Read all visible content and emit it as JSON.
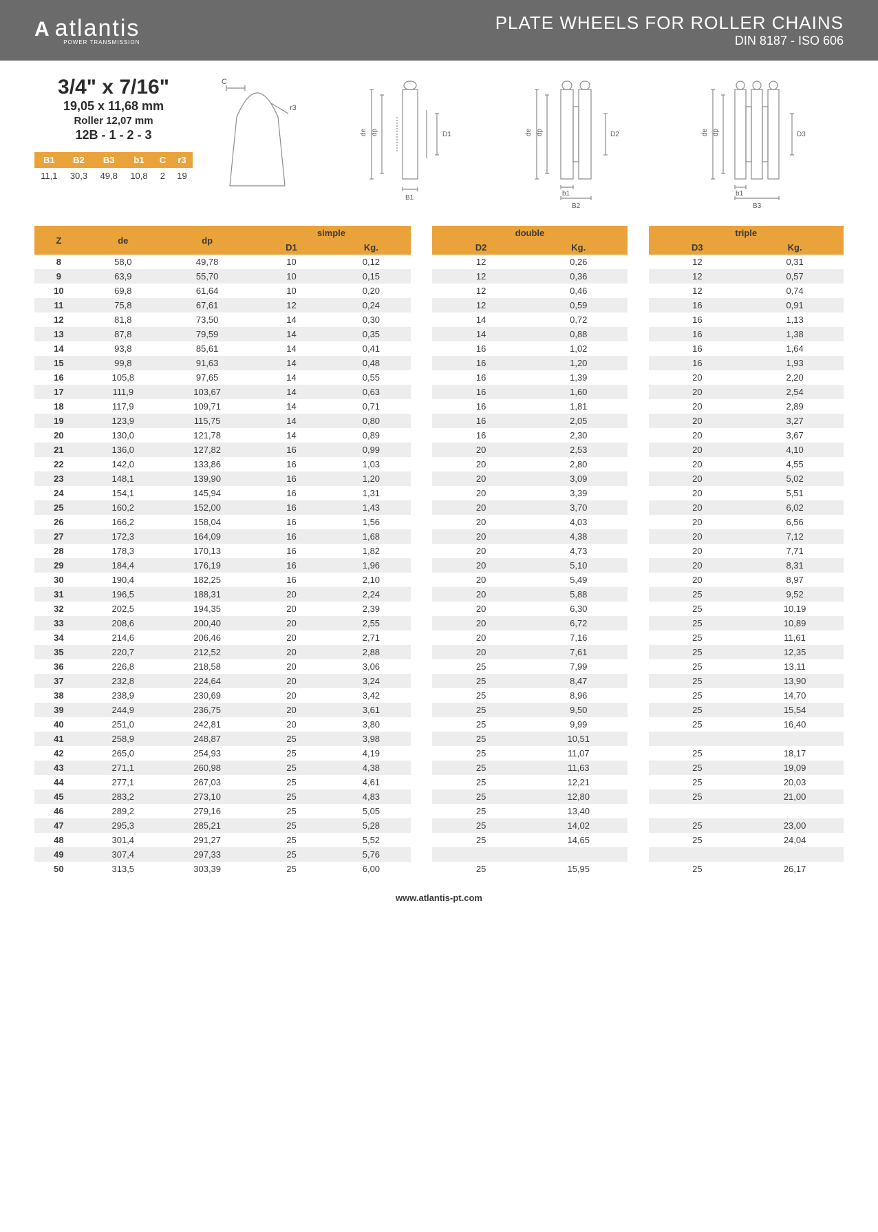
{
  "header": {
    "logo_name": "atlantis",
    "logo_sub": "POWER TRANSMISSION",
    "title": "PLATE WHEELS FOR ROLLER CHAINS",
    "subtitle": "DIN 8187 - ISO 606"
  },
  "spec": {
    "main": "3/4\" x 7/16\"",
    "mm": "19,05 x 11,68 mm",
    "roller": "Roller 12,07 mm",
    "code": "12B - 1 - 2 - 3"
  },
  "params": {
    "headers": [
      "B1",
      "B2",
      "B3",
      "b1",
      "C",
      "r3"
    ],
    "values": [
      "11,1",
      "30,3",
      "49,8",
      "10,8",
      "2",
      "19"
    ]
  },
  "group_labels": {
    "simple": "simple",
    "double": "double",
    "triple": "triple"
  },
  "sub_headers": {
    "z": "Z",
    "de": "de",
    "dp": "dp",
    "d1": "D1",
    "d2": "D2",
    "d3": "D3",
    "kg": "Kg."
  },
  "footer": "www.atlantis-pt.com",
  "colors": {
    "header_bg": "#6b6b6b",
    "orange": "#e9a33a",
    "row_alt": "#ededed",
    "text": "#3a3a3a"
  },
  "diagrams": {
    "color": "#8a8a8a",
    "labels": [
      "C",
      "r3",
      "de",
      "dp",
      "D1",
      "B1",
      "b1",
      "B2",
      "D2",
      "B3",
      "D3"
    ]
  },
  "rows": [
    {
      "z": "8",
      "de": "58,0",
      "dp": "49,78",
      "d1": "10",
      "kg1": "0,12",
      "d2": "12",
      "kg2": "0,26",
      "d3": "12",
      "kg3": "0,31"
    },
    {
      "z": "9",
      "de": "63,9",
      "dp": "55,70",
      "d1": "10",
      "kg1": "0,15",
      "d2": "12",
      "kg2": "0,36",
      "d3": "12",
      "kg3": "0,57"
    },
    {
      "z": "10",
      "de": "69,8",
      "dp": "61,64",
      "d1": "10",
      "kg1": "0,20",
      "d2": "12",
      "kg2": "0,46",
      "d3": "12",
      "kg3": "0,74"
    },
    {
      "z": "11",
      "de": "75,8",
      "dp": "67,61",
      "d1": "12",
      "kg1": "0,24",
      "d2": "12",
      "kg2": "0,59",
      "d3": "16",
      "kg3": "0,91"
    },
    {
      "z": "12",
      "de": "81,8",
      "dp": "73,50",
      "d1": "14",
      "kg1": "0,30",
      "d2": "14",
      "kg2": "0,72",
      "d3": "16",
      "kg3": "1,13"
    },
    {
      "z": "13",
      "de": "87,8",
      "dp": "79,59",
      "d1": "14",
      "kg1": "0,35",
      "d2": "14",
      "kg2": "0,88",
      "d3": "16",
      "kg3": "1,38"
    },
    {
      "z": "14",
      "de": "93,8",
      "dp": "85,61",
      "d1": "14",
      "kg1": "0,41",
      "d2": "16",
      "kg2": "1,02",
      "d3": "16",
      "kg3": "1,64"
    },
    {
      "z": "15",
      "de": "99,8",
      "dp": "91,63",
      "d1": "14",
      "kg1": "0,48",
      "d2": "16",
      "kg2": "1,20",
      "d3": "16",
      "kg3": "1,93"
    },
    {
      "z": "16",
      "de": "105,8",
      "dp": "97,65",
      "d1": "14",
      "kg1": "0,55",
      "d2": "16",
      "kg2": "1,39",
      "d3": "20",
      "kg3": "2,20"
    },
    {
      "z": "17",
      "de": "111,9",
      "dp": "103,67",
      "d1": "14",
      "kg1": "0,63",
      "d2": "16",
      "kg2": "1,60",
      "d3": "20",
      "kg3": "2,54"
    },
    {
      "z": "18",
      "de": "117,9",
      "dp": "109,71",
      "d1": "14",
      "kg1": "0,71",
      "d2": "16",
      "kg2": "1,81",
      "d3": "20",
      "kg3": "2,89"
    },
    {
      "z": "19",
      "de": "123,9",
      "dp": "115,75",
      "d1": "14",
      "kg1": "0,80",
      "d2": "16",
      "kg2": "2,05",
      "d3": "20",
      "kg3": "3,27"
    },
    {
      "z": "20",
      "de": "130,0",
      "dp": "121,78",
      "d1": "14",
      "kg1": "0,89",
      "d2": "16",
      "kg2": "2,30",
      "d3": "20",
      "kg3": "3,67"
    },
    {
      "z": "21",
      "de": "136,0",
      "dp": "127,82",
      "d1": "16",
      "kg1": "0,99",
      "d2": "20",
      "kg2": "2,53",
      "d3": "20",
      "kg3": "4,10"
    },
    {
      "z": "22",
      "de": "142,0",
      "dp": "133,86",
      "d1": "16",
      "kg1": "1,03",
      "d2": "20",
      "kg2": "2,80",
      "d3": "20",
      "kg3": "4,55"
    },
    {
      "z": "23",
      "de": "148,1",
      "dp": "139,90",
      "d1": "16",
      "kg1": "1,20",
      "d2": "20",
      "kg2": "3,09",
      "d3": "20",
      "kg3": "5,02"
    },
    {
      "z": "24",
      "de": "154,1",
      "dp": "145,94",
      "d1": "16",
      "kg1": "1,31",
      "d2": "20",
      "kg2": "3,39",
      "d3": "20",
      "kg3": "5,51"
    },
    {
      "z": "25",
      "de": "160,2",
      "dp": "152,00",
      "d1": "16",
      "kg1": "1,43",
      "d2": "20",
      "kg2": "3,70",
      "d3": "20",
      "kg3": "6,02"
    },
    {
      "z": "26",
      "de": "166,2",
      "dp": "158,04",
      "d1": "16",
      "kg1": "1,56",
      "d2": "20",
      "kg2": "4,03",
      "d3": "20",
      "kg3": "6,56"
    },
    {
      "z": "27",
      "de": "172,3",
      "dp": "164,09",
      "d1": "16",
      "kg1": "1,68",
      "d2": "20",
      "kg2": "4,38",
      "d3": "20",
      "kg3": "7,12"
    },
    {
      "z": "28",
      "de": "178,3",
      "dp": "170,13",
      "d1": "16",
      "kg1": "1,82",
      "d2": "20",
      "kg2": "4,73",
      "d3": "20",
      "kg3": "7,71"
    },
    {
      "z": "29",
      "de": "184,4",
      "dp": "176,19",
      "d1": "16",
      "kg1": "1,96",
      "d2": "20",
      "kg2": "5,10",
      "d3": "20",
      "kg3": "8,31"
    },
    {
      "z": "30",
      "de": "190,4",
      "dp": "182,25",
      "d1": "16",
      "kg1": "2,10",
      "d2": "20",
      "kg2": "5,49",
      "d3": "20",
      "kg3": "8,97"
    },
    {
      "z": "31",
      "de": "196,5",
      "dp": "188,31",
      "d1": "20",
      "kg1": "2,24",
      "d2": "20",
      "kg2": "5,88",
      "d3": "25",
      "kg3": "9,52"
    },
    {
      "z": "32",
      "de": "202,5",
      "dp": "194,35",
      "d1": "20",
      "kg1": "2,39",
      "d2": "20",
      "kg2": "6,30",
      "d3": "25",
      "kg3": "10,19"
    },
    {
      "z": "33",
      "de": "208,6",
      "dp": "200,40",
      "d1": "20",
      "kg1": "2,55",
      "d2": "20",
      "kg2": "6,72",
      "d3": "25",
      "kg3": "10,89"
    },
    {
      "z": "34",
      "de": "214,6",
      "dp": "206,46",
      "d1": "20",
      "kg1": "2,71",
      "d2": "20",
      "kg2": "7,16",
      "d3": "25",
      "kg3": "11,61"
    },
    {
      "z": "35",
      "de": "220,7",
      "dp": "212,52",
      "d1": "20",
      "kg1": "2,88",
      "d2": "20",
      "kg2": "7,61",
      "d3": "25",
      "kg3": "12,35"
    },
    {
      "z": "36",
      "de": "226,8",
      "dp": "218,58",
      "d1": "20",
      "kg1": "3,06",
      "d2": "25",
      "kg2": "7,99",
      "d3": "25",
      "kg3": "13,11"
    },
    {
      "z": "37",
      "de": "232,8",
      "dp": "224,64",
      "d1": "20",
      "kg1": "3,24",
      "d2": "25",
      "kg2": "8,47",
      "d3": "25",
      "kg3": "13,90"
    },
    {
      "z": "38",
      "de": "238,9",
      "dp": "230,69",
      "d1": "20",
      "kg1": "3,42",
      "d2": "25",
      "kg2": "8,96",
      "d3": "25",
      "kg3": "14,70"
    },
    {
      "z": "39",
      "de": "244,9",
      "dp": "236,75",
      "d1": "20",
      "kg1": "3,61",
      "d2": "25",
      "kg2": "9,50",
      "d3": "25",
      "kg3": "15,54"
    },
    {
      "z": "40",
      "de": "251,0",
      "dp": "242,81",
      "d1": "20",
      "kg1": "3,80",
      "d2": "25",
      "kg2": "9,99",
      "d3": "25",
      "kg3": "16,40"
    },
    {
      "z": "41",
      "de": "258,9",
      "dp": "248,87",
      "d1": "25",
      "kg1": "3,98",
      "d2": "25",
      "kg2": "10,51",
      "d3": "",
      "kg3": ""
    },
    {
      "z": "42",
      "de": "265,0",
      "dp": "254,93",
      "d1": "25",
      "kg1": "4,19",
      "d2": "25",
      "kg2": "11,07",
      "d3": "25",
      "kg3": "18,17"
    },
    {
      "z": "43",
      "de": "271,1",
      "dp": "260,98",
      "d1": "25",
      "kg1": "4,38",
      "d2": "25",
      "kg2": "11,63",
      "d3": "25",
      "kg3": "19,09"
    },
    {
      "z": "44",
      "de": "277,1",
      "dp": "267,03",
      "d1": "25",
      "kg1": "4,61",
      "d2": "25",
      "kg2": "12,21",
      "d3": "25",
      "kg3": "20,03"
    },
    {
      "z": "45",
      "de": "283,2",
      "dp": "273,10",
      "d1": "25",
      "kg1": "4,83",
      "d2": "25",
      "kg2": "12,80",
      "d3": "25",
      "kg3": "21,00"
    },
    {
      "z": "46",
      "de": "289,2",
      "dp": "279,16",
      "d1": "25",
      "kg1": "5,05",
      "d2": "25",
      "kg2": "13,40",
      "d3": "",
      "kg3": ""
    },
    {
      "z": "47",
      "de": "295,3",
      "dp": "285,21",
      "d1": "25",
      "kg1": "5,28",
      "d2": "25",
      "kg2": "14,02",
      "d3": "25",
      "kg3": "23,00"
    },
    {
      "z": "48",
      "de": "301,4",
      "dp": "291,27",
      "d1": "25",
      "kg1": "5,52",
      "d2": "25",
      "kg2": "14,65",
      "d3": "25",
      "kg3": "24,04"
    },
    {
      "z": "49",
      "de": "307,4",
      "dp": "297,33",
      "d1": "25",
      "kg1": "5,76",
      "d2": "",
      "kg2": "",
      "d3": "",
      "kg3": ""
    },
    {
      "z": "50",
      "de": "313,5",
      "dp": "303,39",
      "d1": "25",
      "kg1": "6,00",
      "d2": "25",
      "kg2": "15,95",
      "d3": "25",
      "kg3": "26,17"
    }
  ]
}
